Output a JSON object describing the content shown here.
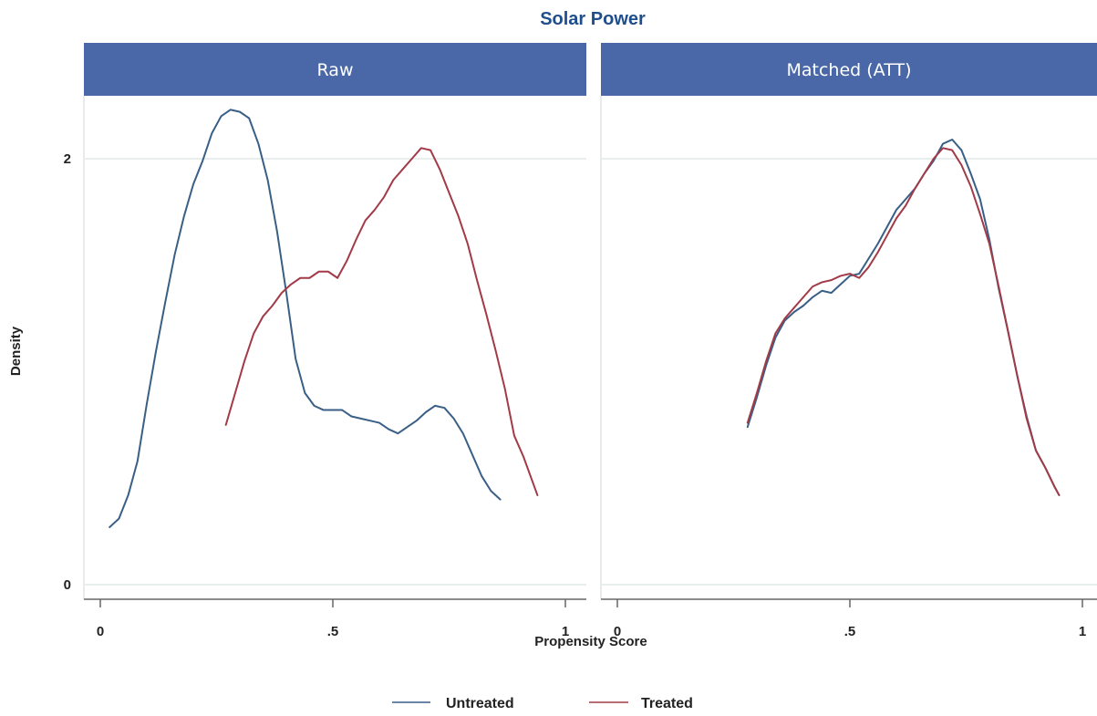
{
  "chart_data": {
    "type": "line",
    "title": "Solar Power",
    "xlabel": "Propensity Score",
    "ylabel": "Density",
    "xlim": [
      0,
      1
    ],
    "ylim": [
      0,
      2.2
    ],
    "x_ticks": [
      {
        "value": 0,
        "label": "0"
      },
      {
        "value": 0.5,
        "label": ".5"
      },
      {
        "value": 1,
        "label": "1"
      }
    ],
    "y_ticks": [
      {
        "value": 0,
        "label": "0"
      },
      {
        "value": 2,
        "label": "2"
      }
    ],
    "grid": true,
    "legend_position": "bottom",
    "colors": {
      "untreated": "#3a5f86",
      "treated": "#a23a47",
      "strip": "#4a68a8",
      "title": "#1f4e8c"
    },
    "legend": [
      {
        "key": "untreated",
        "label": "Untreated"
      },
      {
        "key": "treated",
        "label": "Treated"
      }
    ],
    "panels": [
      {
        "label": "Raw",
        "series": [
          {
            "key": "untreated",
            "x": [
              0.02,
              0.04,
              0.06,
              0.08,
              0.1,
              0.12,
              0.14,
              0.16,
              0.18,
              0.2,
              0.22,
              0.24,
              0.26,
              0.28,
              0.3,
              0.32,
              0.34,
              0.36,
              0.38,
              0.4,
              0.42,
              0.44,
              0.46,
              0.48,
              0.5,
              0.52,
              0.54,
              0.56,
              0.58,
              0.6,
              0.62,
              0.64,
              0.66,
              0.68,
              0.7,
              0.72,
              0.74,
              0.76,
              0.78,
              0.8,
              0.82,
              0.84,
              0.86
            ],
            "values": [
              0.27,
              0.31,
              0.42,
              0.58,
              0.85,
              1.1,
              1.33,
              1.55,
              1.73,
              1.88,
              1.99,
              2.12,
              2.2,
              2.23,
              2.22,
              2.19,
              2.07,
              1.9,
              1.66,
              1.37,
              1.06,
              0.9,
              0.84,
              0.82,
              0.82,
              0.82,
              0.79,
              0.78,
              0.77,
              0.76,
              0.73,
              0.71,
              0.74,
              0.77,
              0.81,
              0.84,
              0.83,
              0.78,
              0.71,
              0.61,
              0.51,
              0.44,
              0.4
            ]
          },
          {
            "key": "treated",
            "x": [
              0.27,
              0.29,
              0.31,
              0.33,
              0.35,
              0.37,
              0.39,
              0.41,
              0.43,
              0.45,
              0.47,
              0.49,
              0.51,
              0.53,
              0.55,
              0.57,
              0.59,
              0.61,
              0.63,
              0.65,
              0.67,
              0.69,
              0.71,
              0.73,
              0.75,
              0.77,
              0.79,
              0.81,
              0.83,
              0.85,
              0.87,
              0.89,
              0.91,
              0.93,
              0.94
            ],
            "values": [
              0.75,
              0.9,
              1.05,
              1.18,
              1.26,
              1.31,
              1.37,
              1.41,
              1.44,
              1.44,
              1.47,
              1.47,
              1.44,
              1.52,
              1.62,
              1.71,
              1.76,
              1.82,
              1.9,
              1.95,
              2.0,
              2.05,
              2.04,
              1.95,
              1.84,
              1.73,
              1.6,
              1.43,
              1.27,
              1.1,
              0.92,
              0.7,
              0.6,
              0.48,
              0.42
            ]
          }
        ]
      },
      {
        "label": "Matched (ATT)",
        "series": [
          {
            "key": "untreated",
            "x": [
              0.28,
              0.3,
              0.32,
              0.34,
              0.36,
              0.38,
              0.4,
              0.42,
              0.44,
              0.46,
              0.48,
              0.5,
              0.52,
              0.54,
              0.56,
              0.58,
              0.6,
              0.62,
              0.64,
              0.66,
              0.68,
              0.7,
              0.72,
              0.74,
              0.76,
              0.78,
              0.8,
              0.82,
              0.84,
              0.86,
              0.88,
              0.9,
              0.92,
              0.94,
              0.95
            ],
            "values": [
              0.74,
              0.88,
              1.03,
              1.16,
              1.24,
              1.28,
              1.31,
              1.35,
              1.38,
              1.37,
              1.41,
              1.45,
              1.46,
              1.53,
              1.6,
              1.68,
              1.76,
              1.81,
              1.86,
              1.93,
              1.99,
              2.07,
              2.09,
              2.04,
              1.93,
              1.81,
              1.62,
              1.39,
              1.19,
              0.98,
              0.79,
              0.63,
              0.55,
              0.46,
              0.42
            ]
          },
          {
            "key": "treated",
            "x": [
              0.28,
              0.3,
              0.32,
              0.34,
              0.36,
              0.38,
              0.4,
              0.42,
              0.44,
              0.46,
              0.48,
              0.5,
              0.52,
              0.54,
              0.56,
              0.58,
              0.6,
              0.62,
              0.64,
              0.66,
              0.68,
              0.7,
              0.72,
              0.74,
              0.76,
              0.78,
              0.8,
              0.82,
              0.84,
              0.86,
              0.88,
              0.9,
              0.92,
              0.94,
              0.95
            ],
            "values": [
              0.76,
              0.9,
              1.05,
              1.18,
              1.25,
              1.3,
              1.35,
              1.4,
              1.42,
              1.43,
              1.45,
              1.46,
              1.44,
              1.49,
              1.56,
              1.64,
              1.72,
              1.78,
              1.86,
              1.93,
              2.0,
              2.05,
              2.04,
              1.97,
              1.87,
              1.74,
              1.6,
              1.4,
              1.19,
              0.98,
              0.78,
              0.63,
              0.55,
              0.46,
              0.42
            ]
          }
        ]
      }
    ]
  }
}
